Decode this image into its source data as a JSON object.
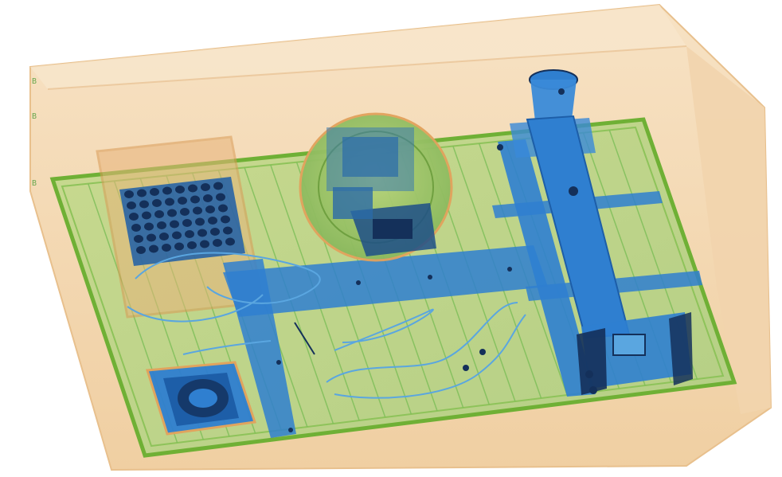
{
  "image": {
    "kind": "x-ray-baggage-scan",
    "colors": {
      "background": "#ffffff",
      "crate_fill": "#f3d3a9",
      "crate_edge": "#e4b57e",
      "tray_fill": "#bcd48a",
      "tray_edge": "#6fb035",
      "tray_lines": "#7fbf5a",
      "metal_blue": "#2f7fd0",
      "metal_dark": "#14305a",
      "organic_orange": "#e8a25a",
      "organic_green": "#8fc050",
      "wire_blue": "#5aa6e0"
    },
    "objects": [
      {
        "name": "battery-pack",
        "material": "dense-metal"
      },
      {
        "name": "helmet-with-electronics",
        "material": "mixed"
      },
      {
        "name": "t-shaped-metal-bar",
        "material": "metal"
      },
      {
        "name": "vertical-beam-with-clamp",
        "material": "metal"
      },
      {
        "name": "square-motor-unit",
        "material": "metal"
      },
      {
        "name": "cables",
        "material": "wire"
      }
    ]
  }
}
